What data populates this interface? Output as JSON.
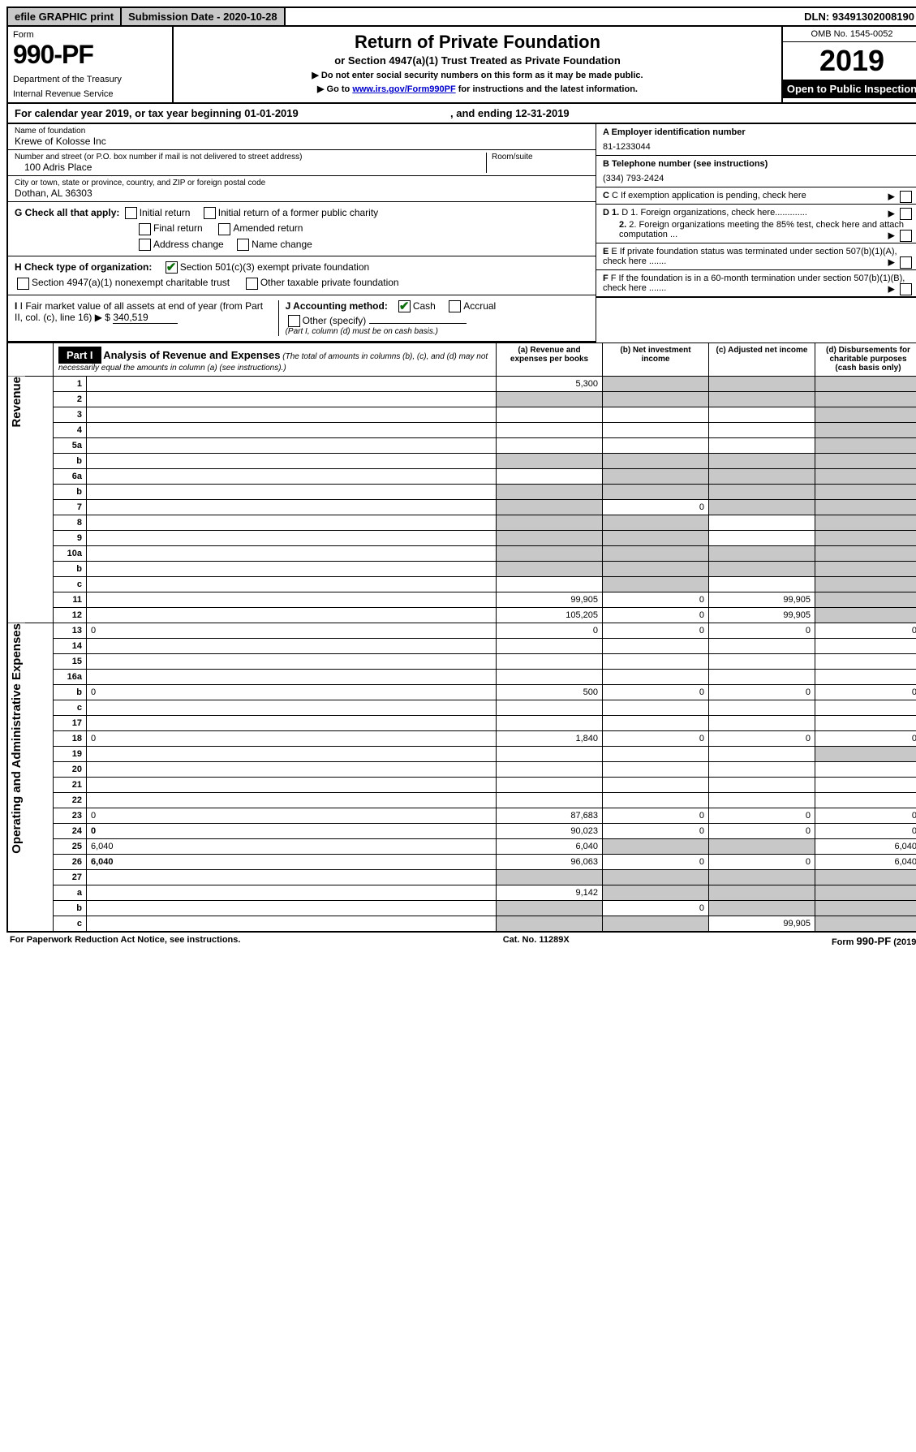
{
  "top": {
    "efile": "efile GRAPHIC print",
    "sub_label": "Submission Date - 2020-10-28",
    "dln": "DLN: 93491302008190"
  },
  "header": {
    "form_label": "Form",
    "form_number": "990-PF",
    "dept1": "Department of the Treasury",
    "dept2": "Internal Revenue Service",
    "title": "Return of Private Foundation",
    "subtitle": "or Section 4947(a)(1) Trust Treated as Private Foundation",
    "instr1": "▶ Do not enter social security numbers on this form as it may be made public.",
    "instr2_pre": "▶ Go to ",
    "instr2_link": "www.irs.gov/Form990PF",
    "instr2_post": " for instructions and the latest information.",
    "omb": "OMB No. 1545-0052",
    "year": "2019",
    "inspection": "Open to Public Inspection"
  },
  "calyear": {
    "pre": "For calendar year 2019, or tax year beginning ",
    "begin": "01-01-2019",
    "mid": " , and ending ",
    "end": "12-31-2019"
  },
  "org": {
    "name_label": "Name of foundation",
    "name": "Krewe of Kolosse Inc",
    "addr_label": "Number and street (or P.O. box number if mail is not delivered to street address)",
    "room_label": "Room/suite",
    "street": "100 Adris Place",
    "city_label": "City or town, state or province, country, and ZIP or foreign postal code",
    "city": "Dothan, AL  36303",
    "a_label": "A Employer identification number",
    "ein": "81-1233044",
    "b_label": "B Telephone number (see instructions)",
    "phone": "(334) 793-2424",
    "c_label": "C If exemption application is pending, check here",
    "d1": "D 1. Foreign organizations, check here.............",
    "d2": "2. Foreign organizations meeting the 85% test, check here and attach computation ...",
    "e_label": "E  If private foundation status was terminated under section 507(b)(1)(A), check here .......",
    "f_label": "F  If the foundation is in a 60-month termination under section 507(b)(1)(B), check here ......."
  },
  "g": {
    "label": "G Check all that apply:",
    "opt1": "Initial return",
    "opt2": "Initial return of a former public charity",
    "opt3": "Final return",
    "opt4": "Amended return",
    "opt5": "Address change",
    "opt6": "Name change"
  },
  "h": {
    "label": "H Check type of organization:",
    "opt1": "Section 501(c)(3) exempt private foundation",
    "opt2": "Section 4947(a)(1) nonexempt charitable trust",
    "opt3": "Other taxable private foundation"
  },
  "i": {
    "label": "I Fair market value of all assets at end of year (from Part II, col. (c), line 16)",
    "arrow": "▶ $",
    "value": "340,519"
  },
  "j": {
    "label": "J Accounting method:",
    "cash": "Cash",
    "accrual": "Accrual",
    "other": "Other (specify)",
    "note": "(Part I, column (d) must be on cash basis.)"
  },
  "part1": {
    "label": "Part I",
    "title": "Analysis of Revenue and Expenses",
    "title_note": "(The total of amounts in columns (b), (c), and (d) may not necessarily equal the amounts in column (a) (see instructions).)",
    "col_a": "(a)  Revenue and expenses per books",
    "col_b": "(b)  Net investment income",
    "col_c": "(c)  Adjusted net income",
    "col_d": "(d)  Disbursements for charitable purposes (cash basis only)"
  },
  "vert": {
    "revenue": "Revenue",
    "expenses": "Operating and Administrative Expenses"
  },
  "rows": [
    {
      "n": "1",
      "d": "",
      "a": "5,300",
      "b": "",
      "c": "",
      "shade_b": true,
      "shade_c": true,
      "shade_d": true
    },
    {
      "n": "2",
      "d": "",
      "a": "",
      "b": "",
      "c": "",
      "shade_a": true,
      "shade_b": true,
      "shade_c": true,
      "shade_d": true,
      "bold_part": "not"
    },
    {
      "n": "3",
      "d": "",
      "a": "",
      "b": "",
      "c": "",
      "shade_d": true
    },
    {
      "n": "4",
      "d": "",
      "a": "",
      "b": "",
      "c": "",
      "shade_d": true
    },
    {
      "n": "5a",
      "d": "",
      "a": "",
      "b": "",
      "c": "",
      "shade_d": true
    },
    {
      "n": "b",
      "d": "",
      "a": "",
      "b": "",
      "c": "",
      "shade_a": true,
      "shade_b": true,
      "shade_c": true,
      "shade_d": true
    },
    {
      "n": "6a",
      "d": "",
      "a": "",
      "b": "",
      "c": "",
      "shade_b": true,
      "shade_c": true,
      "shade_d": true
    },
    {
      "n": "b",
      "d": "",
      "a": "",
      "b": "",
      "c": "",
      "shade_a": true,
      "shade_b": true,
      "shade_c": true,
      "shade_d": true
    },
    {
      "n": "7",
      "d": "",
      "a": "",
      "b": "0",
      "c": "",
      "shade_a": true,
      "shade_c": true,
      "shade_d": true
    },
    {
      "n": "8",
      "d": "",
      "a": "",
      "b": "",
      "c": "",
      "shade_a": true,
      "shade_b": true,
      "shade_d": true
    },
    {
      "n": "9",
      "d": "",
      "a": "",
      "b": "",
      "c": "",
      "shade_a": true,
      "shade_b": true,
      "shade_d": true
    },
    {
      "n": "10a",
      "d": "",
      "a": "",
      "b": "",
      "c": "",
      "shade_a": true,
      "shade_b": true,
      "shade_c": true,
      "shade_d": true
    },
    {
      "n": "b",
      "d": "",
      "a": "",
      "b": "",
      "c": "",
      "shade_a": true,
      "shade_b": true,
      "shade_c": true,
      "shade_d": true
    },
    {
      "n": "c",
      "d": "",
      "a": "",
      "b": "",
      "c": "",
      "shade_b": true,
      "shade_d": true
    },
    {
      "n": "11",
      "d": "",
      "a": "99,905",
      "b": "0",
      "c": "99,905",
      "shade_d": true
    },
    {
      "n": "12",
      "d": "",
      "a": "105,205",
      "b": "0",
      "c": "99,905",
      "shade_d": true,
      "bold": true
    },
    {
      "n": "13",
      "d": "0",
      "a": "0",
      "b": "0",
      "c": "0"
    },
    {
      "n": "14",
      "d": "",
      "a": "",
      "b": "",
      "c": ""
    },
    {
      "n": "15",
      "d": "",
      "a": "",
      "b": "",
      "c": ""
    },
    {
      "n": "16a",
      "d": "",
      "a": "",
      "b": "",
      "c": ""
    },
    {
      "n": "b",
      "d": "0",
      "a": "500",
      "b": "0",
      "c": "0"
    },
    {
      "n": "c",
      "d": "",
      "a": "",
      "b": "",
      "c": ""
    },
    {
      "n": "17",
      "d": "",
      "a": "",
      "b": "",
      "c": ""
    },
    {
      "n": "18",
      "d": "0",
      "a": "1,840",
      "b": "0",
      "c": "0"
    },
    {
      "n": "19",
      "d": "",
      "a": "",
      "b": "",
      "c": "",
      "shade_d": true
    },
    {
      "n": "20",
      "d": "",
      "a": "",
      "b": "",
      "c": ""
    },
    {
      "n": "21",
      "d": "",
      "a": "",
      "b": "",
      "c": ""
    },
    {
      "n": "22",
      "d": "",
      "a": "",
      "b": "",
      "c": ""
    },
    {
      "n": "23",
      "d": "0",
      "a": "87,683",
      "b": "0",
      "c": "0"
    },
    {
      "n": "24",
      "d": "0",
      "a": "90,023",
      "b": "0",
      "c": "0",
      "bold": true
    },
    {
      "n": "25",
      "d": "6,040",
      "a": "6,040",
      "b": "",
      "c": "",
      "shade_b": true,
      "shade_c": true
    },
    {
      "n": "26",
      "d": "6,040",
      "a": "96,063",
      "b": "0",
      "c": "0",
      "bold": true
    },
    {
      "n": "27",
      "d": "",
      "a": "",
      "b": "",
      "c": "",
      "shade_a": true,
      "shade_b": true,
      "shade_c": true,
      "shade_d": true
    },
    {
      "n": "a",
      "d": "",
      "a": "9,142",
      "b": "",
      "c": "",
      "shade_b": true,
      "shade_c": true,
      "shade_d": true,
      "bold": true
    },
    {
      "n": "b",
      "d": "",
      "a": "",
      "b": "0",
      "c": "",
      "shade_a": true,
      "shade_c": true,
      "shade_d": true,
      "bold": true
    },
    {
      "n": "c",
      "d": "",
      "a": "",
      "b": "",
      "c": "99,905",
      "shade_a": true,
      "shade_b": true,
      "shade_d": true,
      "bold": true
    }
  ],
  "footer": {
    "left": "For Paperwork Reduction Act Notice, see instructions.",
    "mid": "Cat. No. 11289X",
    "right": "Form 990-PF (2019)"
  }
}
